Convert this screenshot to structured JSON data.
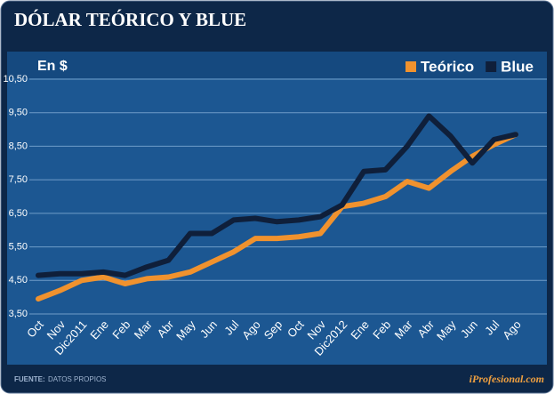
{
  "chart_data": {
    "type": "line",
    "title": "DÓLAR TEÓRICO Y BLUE",
    "unit_label": "En $",
    "source_label": "FUENTE:",
    "source": "DATOS PROPIOS",
    "brand": "iProfesional.com",
    "categories": [
      "Oct",
      "Nov",
      "Dic2011",
      "Ene",
      "Feb",
      "Mar",
      "Abr",
      "May",
      "Jun",
      "Jul",
      "Ago",
      "Sep",
      "Oct",
      "Nov",
      "Dic2012",
      "Ene",
      "Feb",
      "Mar",
      "Abr",
      "May",
      "Jun",
      "Jul",
      "Ago"
    ],
    "series": [
      {
        "name": "Teórico",
        "color": "#f0922e",
        "values": [
          3.95,
          4.2,
          4.5,
          4.6,
          4.4,
          4.55,
          4.6,
          4.75,
          5.05,
          5.35,
          5.75,
          5.75,
          5.8,
          5.9,
          6.7,
          6.8,
          7.0,
          7.45,
          7.25,
          7.75,
          8.2,
          8.55,
          8.85
        ]
      },
      {
        "name": "Blue",
        "color": "#0f1f3a",
        "values": [
          4.65,
          4.7,
          4.7,
          4.75,
          4.65,
          4.9,
          5.1,
          5.9,
          5.9,
          6.3,
          6.35,
          6.25,
          6.3,
          6.4,
          6.75,
          7.75,
          7.8,
          8.5,
          9.4,
          8.8,
          8.0,
          8.7,
          8.85
        ]
      }
    ],
    "ylim": [
      3.5,
      10.5
    ],
    "yticks": [
      {
        "value": 3.5,
        "label": "3,50"
      },
      {
        "value": 4.5,
        "label": "4,50"
      },
      {
        "value": 5.5,
        "label": "5,50"
      },
      {
        "value": 6.5,
        "label": "6,50"
      },
      {
        "value": 7.5,
        "label": "7,50"
      },
      {
        "value": 8.5,
        "label": "8,50"
      },
      {
        "value": 9.5,
        "label": "9,50"
      },
      {
        "value": 10.5,
        "label": "10,50"
      }
    ],
    "grid": true,
    "legend": "top-right"
  }
}
